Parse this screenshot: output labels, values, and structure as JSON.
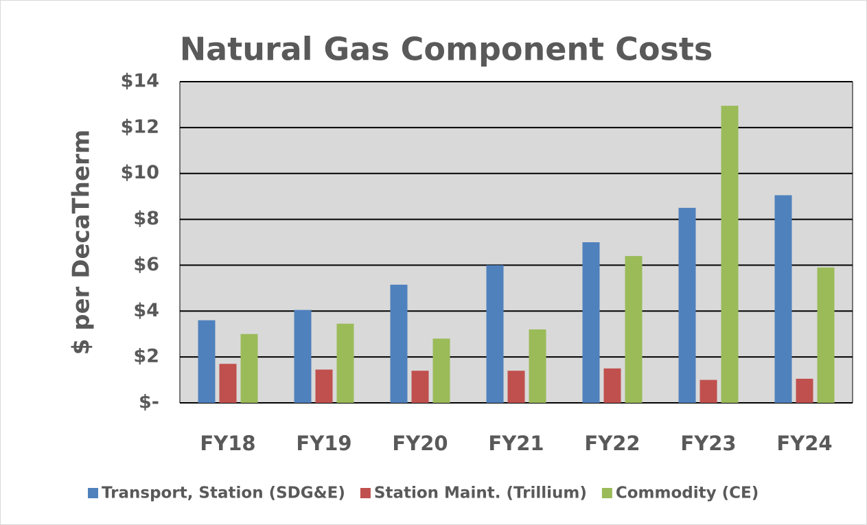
{
  "chart_data": {
    "type": "bar",
    "title": "Natural Gas Component Costs",
    "y_label": "$ per DecaTherm",
    "categories": [
      "FY18",
      "FY19",
      "FY20",
      "FY21",
      "FY22",
      "FY23",
      "FY24"
    ],
    "series": [
      {
        "name": "Transport, Station (SDG&E)",
        "color": "#4f81bd",
        "values": [
          3.6,
          4.05,
          5.15,
          6.0,
          7.0,
          8.5,
          9.05
        ]
      },
      {
        "name": "Station Maint. (Trillium)",
        "color": "#c0504d",
        "values": [
          1.7,
          1.45,
          1.4,
          1.4,
          1.5,
          1.0,
          1.05
        ]
      },
      {
        "name": "Commodity (CE)",
        "color": "#9bbb59",
        "values": [
          3.0,
          3.45,
          2.8,
          3.2,
          6.4,
          12.95,
          5.9
        ]
      }
    ],
    "ylim": [
      0,
      14
    ],
    "yticks": [
      {
        "value": 0,
        "label": "$-"
      },
      {
        "value": 2,
        "label": "$2"
      },
      {
        "value": 4,
        "label": "$4"
      },
      {
        "value": 6,
        "label": "$6"
      },
      {
        "value": 8,
        "label": "$8"
      },
      {
        "value": 10,
        "label": "$10"
      },
      {
        "value": 12,
        "label": "$12"
      },
      {
        "value": 14,
        "label": "$14"
      }
    ],
    "grid": true,
    "legend": "bottom"
  }
}
